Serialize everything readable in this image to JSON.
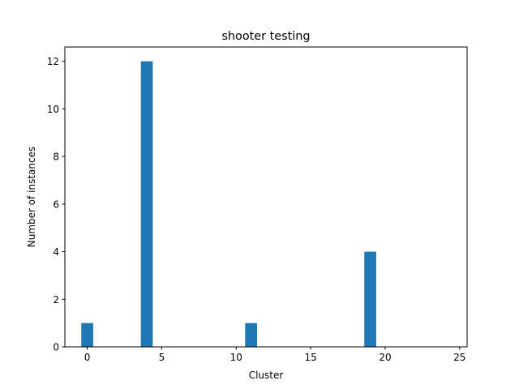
{
  "chart_data": {
    "type": "bar",
    "title": "shooter testing",
    "xlabel": "Cluster",
    "ylabel": "Number of instances",
    "xlim": [
      -1.5,
      25.5
    ],
    "ylim": [
      0,
      12.6
    ],
    "xticks": [
      0,
      5,
      10,
      15,
      20,
      25
    ],
    "yticks": [
      0,
      2,
      4,
      6,
      8,
      10,
      12
    ],
    "bar_width": 0.8,
    "color": "#1f77b4",
    "grid": false,
    "legend": false,
    "bars": [
      {
        "x": 0,
        "value": 1
      },
      {
        "x": 4,
        "value": 12
      },
      {
        "x": 11,
        "value": 1
      },
      {
        "x": 19,
        "value": 4
      }
    ]
  }
}
